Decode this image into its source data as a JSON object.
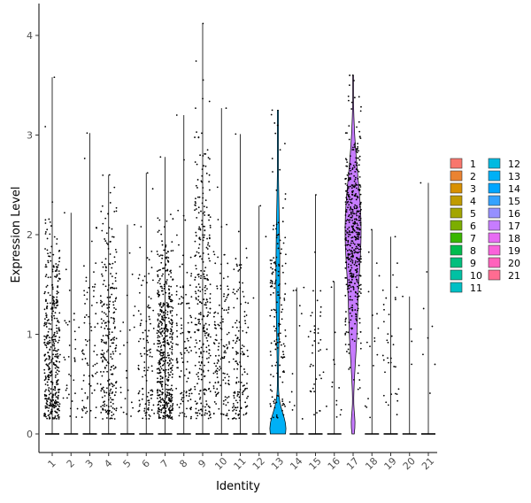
{
  "chart_data": {
    "type": "violin",
    "xlabel": "Identity",
    "ylabel": "Expression Level",
    "ylim": [
      -0.18,
      4.35
    ],
    "yticks": [
      0,
      1,
      2,
      3,
      4
    ],
    "categories": [
      "1",
      "2",
      "3",
      "4",
      "5",
      "6",
      "7",
      "8",
      "9",
      "10",
      "11",
      "12",
      "13",
      "14",
      "15",
      "16",
      "17",
      "18",
      "19",
      "20",
      "21"
    ],
    "colors": [
      "#F8766D",
      "#EA8331",
      "#D89000",
      "#C09B00",
      "#A3A500",
      "#7CAE00",
      "#39B600",
      "#00BB4E",
      "#00BF7D",
      "#00C1A3",
      "#00BFC4",
      "#00BAE0",
      "#00B0F6",
      "#00A5FF",
      "#35A2FF",
      "#9590FF",
      "#C77CFF",
      "#E76BF3",
      "#FA62DB",
      "#FF62BC",
      "#FF6C91"
    ],
    "max_expression": [
      3.58,
      2.22,
      3.02,
      2.6,
      2.1,
      2.62,
      2.78,
      3.2,
      4.12,
      3.27,
      3.01,
      2.29,
      3.25,
      1.47,
      2.4,
      1.53,
      3.6,
      2.05,
      1.98,
      1.38,
      2.52
    ],
    "point_counts": [
      420,
      35,
      80,
      260,
      25,
      110,
      500,
      120,
      300,
      140,
      140,
      3,
      160,
      12,
      40,
      15,
      480,
      18,
      35,
      4,
      8
    ],
    "filled_violins": [
      13,
      17
    ],
    "legend": {
      "col1": [
        "1",
        "2",
        "3",
        "4",
        "5",
        "6",
        "7",
        "8",
        "9",
        "10",
        "11"
      ],
      "col2": [
        "12",
        "13",
        "14",
        "15",
        "16",
        "17",
        "18",
        "19",
        "20",
        "21"
      ]
    }
  }
}
